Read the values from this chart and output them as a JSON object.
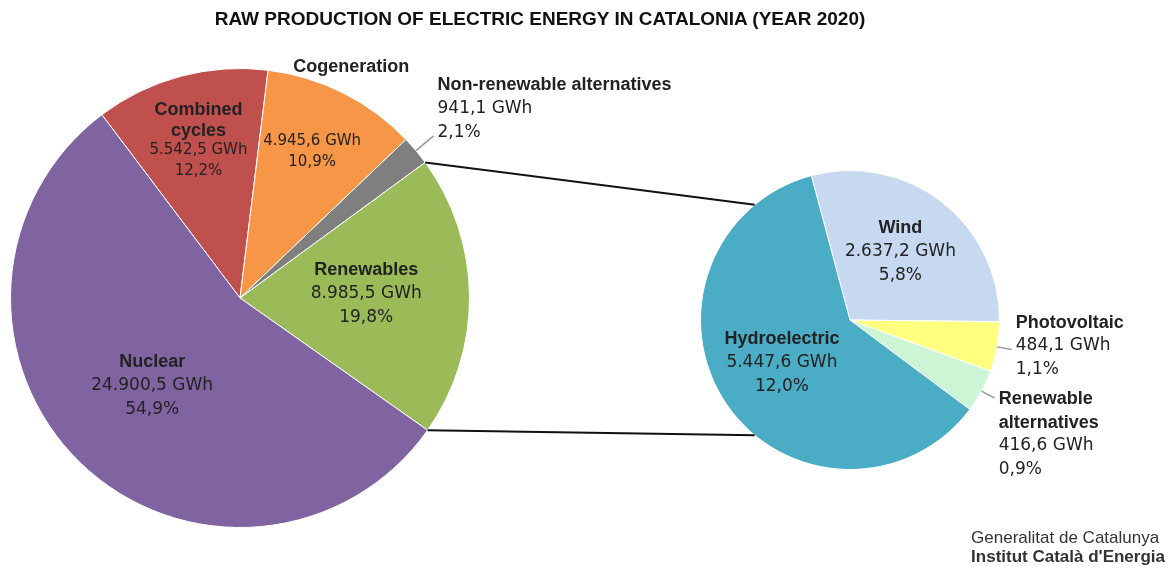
{
  "chart_data": [
    {
      "type": "pie",
      "title": "RAW PRODUCTION OF ELECTRIC ENERGY IN CATALONIA (YEAR 2020)",
      "categories": [
        "Combined cycles",
        "Cogeneration",
        "Non-renewable alternatives",
        "Renewables",
        "Nuclear"
      ],
      "values": [
        5542.5,
        4945.6,
        941.1,
        8985.5,
        24900.5
      ],
      "colors": [
        "#c0504d",
        "#f79646",
        "#7f7f7f",
        "#9bbb59",
        "#8064a2"
      ],
      "value_labels": [
        "5.542,5 GWh\n12,2%",
        "4.945,6 GWh\n10,9%",
        "941,1 GWh\n2,1%",
        "8.985,5 GWh\n19,8%",
        "24.900,5 GWh\n54,9%"
      ],
      "legend": false
    },
    {
      "type": "pie",
      "categories": [
        "Wind",
        "Photovoltaic",
        "Renewable alternatives",
        "Hydroelectric"
      ],
      "values": [
        2637.2,
        484.1,
        416.6,
        5447.6
      ],
      "colors": [
        "#c6d9f1",
        "#ffff80",
        "#ccf5d6",
        "#4bacc6"
      ],
      "value_labels": [
        "2.637,2 GWh\n5,8%",
        "484,1 GWh\n1,1%",
        "416,6 GWh\n0,9%",
        "5.447,6 GWh\n12,0%"
      ],
      "legend": false,
      "annotations": [
        "Generalitat de Catalunya",
        "Institut Català d'Energia"
      ]
    }
  ]
}
